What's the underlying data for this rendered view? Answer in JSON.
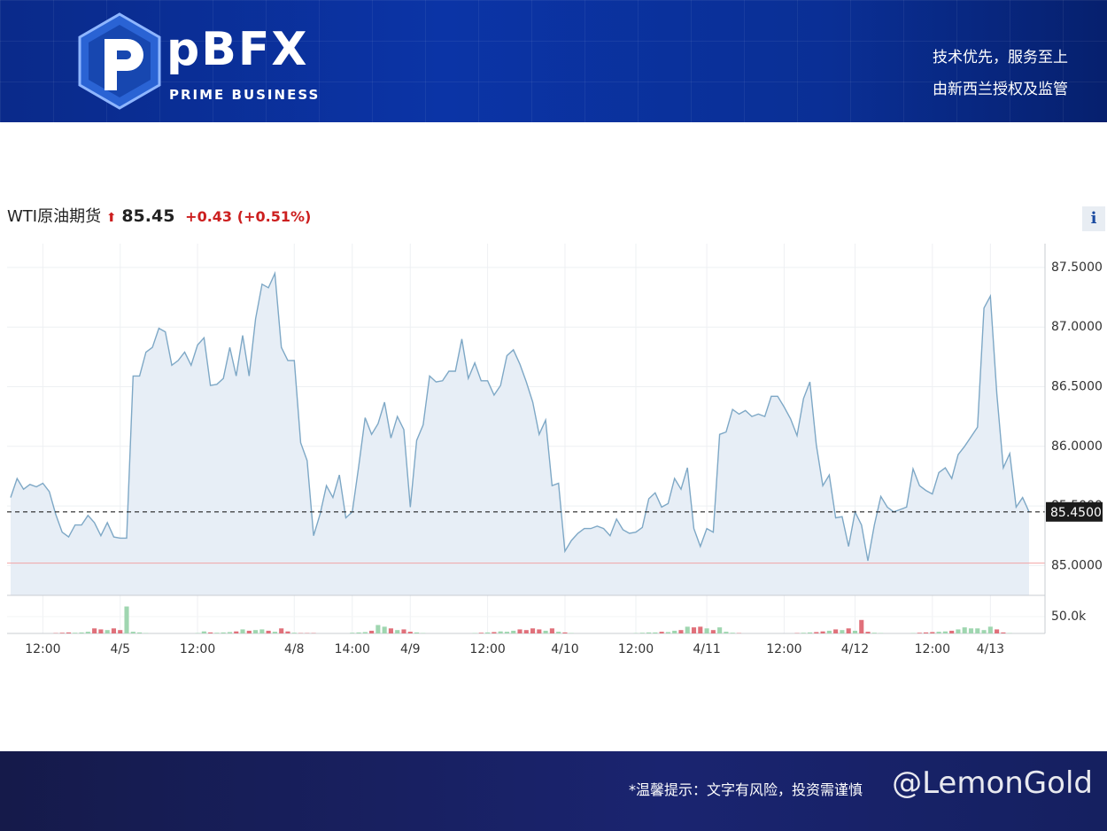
{
  "header": {
    "logo_text": "pBFX",
    "logo_sub": "PRIME BUSINESS",
    "slogan_1": "技术优先，服务至上",
    "slogan_2": "由新西兰授权及监管"
  },
  "quote": {
    "name": "WTI原油期货",
    "price": "85.45",
    "change": "+0.43",
    "change_pct": "(+0.51%)"
  },
  "info_icon": "i",
  "footer": {
    "notice": "*温馨提示：文字有风险，投资需谨慎",
    "watermark": "@LemonGold"
  },
  "chart_data": {
    "type": "line",
    "series": [
      {
        "color": "#7ea8c6",
        "fill": "#e7eef6",
        "values": [
          85.57,
          85.73,
          85.64,
          85.68,
          85.66,
          85.69,
          85.62,
          85.43,
          85.28,
          85.24,
          85.34,
          85.34,
          85.42,
          85.36,
          85.25,
          85.36,
          85.24,
          85.23,
          85.23,
          86.59,
          86.59,
          86.79,
          86.83,
          86.99,
          86.96,
          86.68,
          86.72,
          86.79,
          86.68,
          86.85,
          86.91,
          86.51,
          86.52,
          86.57,
          86.83,
          86.59,
          86.93,
          86.59,
          87.07,
          87.36,
          87.33,
          87.45,
          86.83,
          86.72,
          86.72,
          86.03,
          85.88,
          85.25,
          85.43,
          85.67,
          85.57,
          85.76,
          85.4,
          85.45,
          85.83,
          86.24,
          86.1,
          86.19,
          86.37,
          86.07,
          86.25,
          86.14,
          85.49,
          86.05,
          86.18,
          86.59,
          86.54,
          86.55,
          86.63,
          86.63,
          86.9,
          86.57,
          86.7,
          86.55,
          86.55,
          86.43,
          86.51,
          86.76,
          86.81,
          86.69,
          86.54,
          86.37,
          86.1,
          86.22,
          85.67,
          85.69,
          85.12,
          85.21,
          85.27,
          85.31,
          85.31,
          85.33,
          85.31,
          85.25,
          85.39,
          85.3,
          85.27,
          85.28,
          85.32,
          85.56,
          85.61,
          85.49,
          85.52,
          85.73,
          85.64,
          85.82,
          85.31,
          85.16,
          85.31,
          85.28,
          86.1,
          86.12,
          86.31,
          86.27,
          86.3,
          86.25,
          86.27,
          86.25,
          86.42,
          86.42,
          86.33,
          86.23,
          86.09,
          86.4,
          86.54,
          86.01,
          85.67,
          85.76,
          85.4,
          85.41,
          85.16,
          85.45,
          85.34,
          85.04,
          85.34,
          85.58,
          85.49,
          85.45,
          85.47,
          85.49,
          85.81,
          85.67,
          85.63,
          85.6,
          85.78,
          85.82,
          85.73,
          85.93,
          86.0,
          86.08,
          86.16,
          87.16,
          87.26,
          86.44,
          85.82,
          85.94,
          85.49,
          85.57,
          85.45
        ]
      }
    ],
    "xlim": [
      0,
      158
    ],
    "xticks": [
      {
        "value": 5,
        "label": "12:00"
      },
      {
        "value": 17,
        "label": "4/5"
      },
      {
        "value": 29,
        "label": "12:00"
      },
      {
        "value": 44,
        "label": "4/8"
      },
      {
        "value": 53,
        "label": "14:00"
      },
      {
        "value": 62,
        "label": "4/9"
      },
      {
        "value": 74,
        "label": "12:00"
      },
      {
        "value": 86,
        "label": "4/10"
      },
      {
        "value": 97,
        "label": "12:00"
      },
      {
        "value": 108,
        "label": "4/11"
      },
      {
        "value": 120,
        "label": "12:00"
      },
      {
        "value": 131,
        "label": "4/12"
      },
      {
        "value": 143,
        "label": "12:00"
      },
      {
        "value": 152,
        "label": "4/13"
      }
    ],
    "ylim": [
      84.75,
      87.7
    ],
    "yticks": [
      {
        "value": 85,
        "label": "85.0000"
      },
      {
        "value": 85.5,
        "label": "85.5000"
      },
      {
        "value": 86,
        "label": "86.0000"
      },
      {
        "value": 86.5,
        "label": "86.5000"
      },
      {
        "value": 87,
        "label": "87.0000"
      },
      {
        "value": 87.5,
        "label": "87.5000"
      }
    ],
    "last_price": {
      "value": 85.45,
      "label": "85.4500"
    },
    "prev_close": 85.02,
    "grid": true,
    "volume": {
      "up_color": "#9fd6b0",
      "down_color": "#e0707a",
      "ylim": [
        0,
        113000
      ],
      "yticks": [
        {
          "value": 50000,
          "label": "50.0k"
        }
      ],
      "values": [
        0,
        0,
        0,
        0,
        0,
        0,
        0,
        1000,
        2000,
        3000,
        2000,
        3000,
        5000,
        15000,
        12000,
        10000,
        15000,
        10000,
        80000,
        5000,
        3000,
        1000,
        0,
        0,
        0,
        0,
        0,
        0,
        0,
        1000,
        6000,
        3000,
        2000,
        3000,
        4000,
        6000,
        12000,
        8000,
        10000,
        12000,
        8000,
        5000,
        15000,
        6000,
        2000,
        1000,
        1000,
        1000,
        0,
        0,
        0,
        0,
        0,
        2000,
        3000,
        4000,
        8000,
        25000,
        20000,
        15000,
        10000,
        12000,
        5000,
        3000,
        1000,
        0,
        0,
        0,
        0,
        0,
        0,
        0,
        1000,
        2000,
        3000,
        4000,
        6000,
        5000,
        8000,
        12000,
        10000,
        15000,
        12000,
        8000,
        15000,
        5000,
        3000,
        1000,
        0,
        0,
        0,
        0,
        0,
        0,
        0,
        0,
        0,
        1000,
        2000,
        3000,
        3000,
        5000,
        4000,
        8000,
        10000,
        20000,
        18000,
        20000,
        15000,
        10000,
        18000,
        5000,
        2000,
        1000,
        0,
        0,
        0,
        0,
        0,
        0,
        0,
        0,
        1000,
        2000,
        3000,
        4000,
        6000,
        8000,
        12000,
        10000,
        15000,
        8000,
        40000,
        5000,
        2000,
        1000,
        0,
        0,
        0,
        0,
        1000,
        2000,
        3000,
        4000,
        5000,
        6000,
        8000,
        12000,
        18000,
        15000,
        15000,
        10000,
        20000,
        12000,
        3000,
        1000,
        0,
        0,
        0
      ]
    }
  }
}
